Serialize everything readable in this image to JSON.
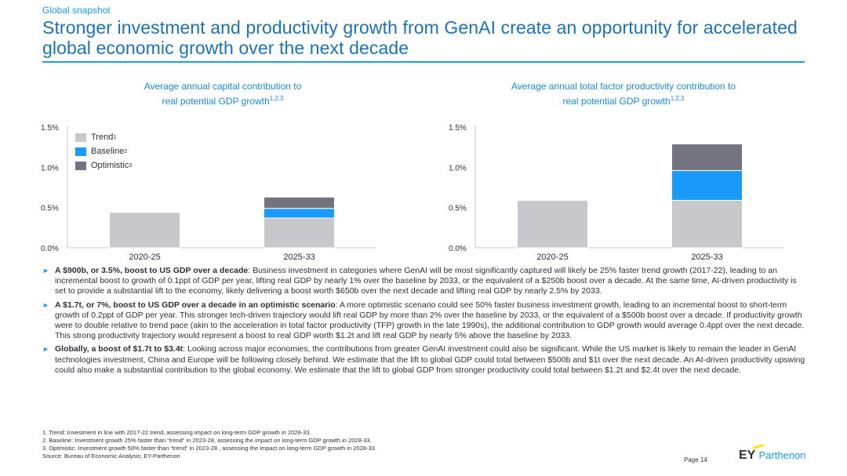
{
  "header": {
    "kicker": "Global snapshot",
    "title": "Stronger investment and productivity growth from GenAI create an opportunity for accelerated global economic growth over the next decade"
  },
  "colors": {
    "accent": "#1a9afa",
    "trend": "#c8c8cc",
    "baseline": "#1a9afa",
    "optimistic": "#747480"
  },
  "legend": {
    "trend": "Trend",
    "trend_sup": "1",
    "baseline": "Baseline",
    "baseline_sup": "2",
    "optimistic": "Optimistic",
    "optimistic_sup": "3"
  },
  "chart_data": [
    {
      "type": "bar",
      "stacked": true,
      "title_line1": "Average annual capital contribution to",
      "title_line2": "real potential GDP growth",
      "title_sup": "1,2,3",
      "categories": [
        "2020-25",
        "2025-33"
      ],
      "yticks": [
        "0.0%",
        "0.5%",
        "1.0%",
        "1.5%"
      ],
      "ylim": [
        0,
        1.5
      ],
      "series": [
        {
          "name": "Trend",
          "values": [
            0.44,
            0.37
          ]
        },
        {
          "name": "Baseline",
          "values": [
            0,
            0.12
          ]
        },
        {
          "name": "Optimistic",
          "values": [
            0,
            0.14
          ]
        }
      ]
    },
    {
      "type": "bar",
      "stacked": true,
      "title_line1": "Average annual total factor productivity contribution to",
      "title_line2": "real potential GDP growth",
      "title_sup": "1,2,3",
      "categories": [
        "2020-25",
        "2025-33"
      ],
      "yticks": [
        "0.0%",
        "0.5%",
        "1.0%",
        "1.5%"
      ],
      "ylim": [
        0,
        1.5
      ],
      "series": [
        {
          "name": "Trend",
          "values": [
            0.59,
            0.59
          ]
        },
        {
          "name": "Baseline",
          "values": [
            0,
            0.37
          ]
        },
        {
          "name": "Optimistic",
          "values": [
            0,
            0.33
          ]
        }
      ]
    }
  ],
  "bullets": [
    {
      "lead": "A $900b, or 3.5%, boost to US GDP over a decade",
      "text": ": Business investment in categories where GenAI will be most significantly captured will likely be 25% faster trend growth (2017-22), leading to an incremental boost to growth of 0.1ppt of GDP per year, lifting real GDP by nearly 1% over the baseline by 2033, or the equivalent of a $250b boost over a decade. At the same time, AI-driven productivity is set to provide a substantial lift to the economy, likely delivering a boost worth $650b over the next decade and lifting real GDP by nearly 2.5% by 2033."
    },
    {
      "lead": "A $1.7t, or 7%, boost to US GDP over a decade in an optimistic scenario",
      "text": ": A more optimistic scenario could see 50% faster business investment growth, leading to an incremental boost to short-term growth of 0.2ppt of GDP per year. This stronger tech-driven trajectory would lift real GDP by more than 2% over the baseline by 2033, or the equivalent of a $500b boost over a decade. If productivity growth were to double relative to trend pace (akin to the acceleration in total factor productivity (TFP) growth in the late 1990s), the additional contribution to GDP growth would average 0.4ppt over the next decade. This strong productivity trajectory would represent a boost to real GDP worth $1.2t and lift real GDP by nearly 5% above the baseline by 2033."
    },
    {
      "lead": "Globally, a boost of $1.7t to $3.4t",
      "text": ": Looking across major economies, the contributions from greater GenAI investment could also be significant. While the US market is likely to remain the leader in GenAI technologies investment, China and Europe will be following closely behind. We estimate that the lift to global GDP could total between $500b and $1t over the next decade. An AI-driven productivity upswing could also make a substantial contribution to the global economy. We estimate that the lift to global GDP from stronger productivity could total between $1.2t and $2.4t over the next decade."
    }
  ],
  "footnotes": [
    "1.   Trend: Investment in line with 2017-22 trend, assessing impact on long-term GDP growth in 2028-33.",
    "2.   Baseline: Investment growth 25% faster than “trend” in 2023-28, assessing the impact on long-term GDP growth in 2028-33.",
    "3.   Optimistic: Investment growth 50% faster than “trend” in 2023-28 , assessing the impact on long-term GDP growth in 2028-33.",
    "Source: Bureau of Economic Analysis; EY-Parthenon"
  ],
  "footer": {
    "page": "Page 14",
    "logo_ey": "EY",
    "logo_parthenon": "Parthenon"
  }
}
